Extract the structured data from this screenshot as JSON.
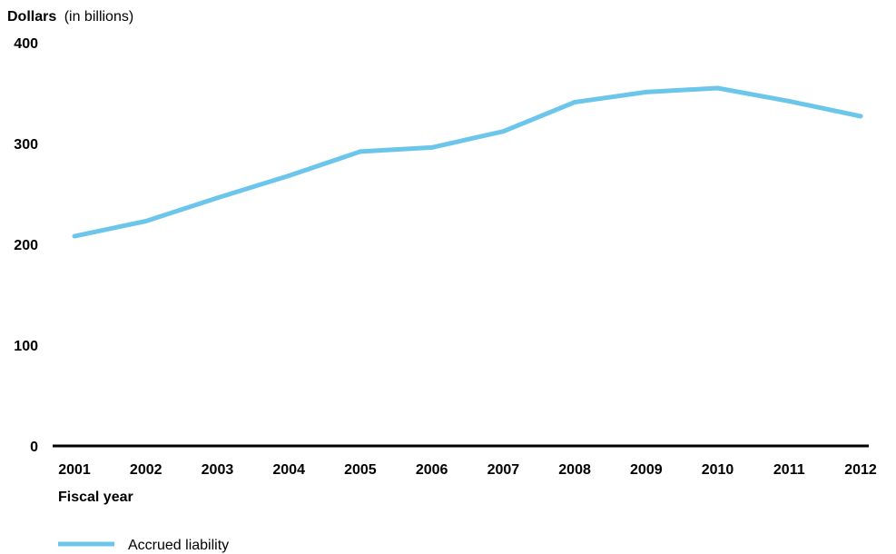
{
  "chart_data": {
    "type": "line",
    "y_title": {
      "main": "Dollars",
      "sub": "(in billions)"
    },
    "xlabel": "Fiscal year",
    "ylim": [
      0,
      400
    ],
    "y_ticks": [
      "0",
      "100",
      "200",
      "300",
      "400"
    ],
    "categories": [
      "2001",
      "2002",
      "2003",
      "2004",
      "2005",
      "2006",
      "2007",
      "2008",
      "2009",
      "2010",
      "2011",
      "2012"
    ],
    "series": [
      {
        "name": "Accrued liability",
        "color": "#6cc5ea",
        "values": [
          208,
          223,
          246,
          268,
          292,
          296,
          312,
          341,
          351,
          355,
          342,
          327
        ]
      }
    ],
    "grid": false,
    "legend_position": "bottom-left"
  }
}
